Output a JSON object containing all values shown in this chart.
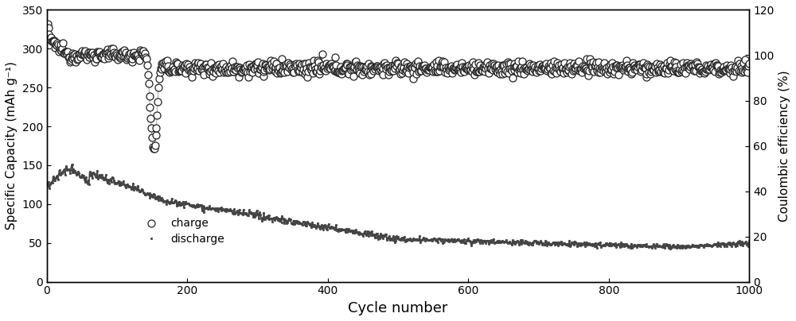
{
  "title": "",
  "xlabel": "Cycle number",
  "ylabel_left": "Specific Capacity (mAh g⁻¹)",
  "ylabel_right": "Coulombic efficiency (%)",
  "xlim": [
    0,
    1000
  ],
  "ylim_left": [
    0,
    350
  ],
  "ylim_right": [
    0,
    120
  ],
  "xticks": [
    0,
    200,
    400,
    600,
    800,
    1000
  ],
  "yticks_left": [
    0,
    50,
    100,
    150,
    200,
    250,
    300,
    350
  ],
  "yticks_right": [
    0,
    20,
    40,
    60,
    80,
    100,
    120
  ],
  "charge_color": "#222222",
  "discharge_color": "#444444",
  "line_color": "#888888",
  "figsize": [
    10.0,
    4.04
  ],
  "dpi": 100
}
